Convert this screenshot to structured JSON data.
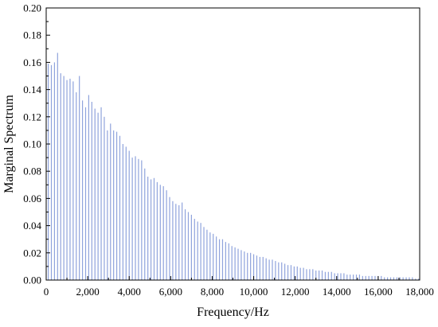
{
  "chart_data": {
    "type": "bar",
    "xlabel": "Frequency/Hz",
    "ylabel": "Marginal Spectrum",
    "xlim": [
      0,
      18000
    ],
    "ylim": [
      0,
      0.2
    ],
    "xticks": [
      0,
      2000,
      4000,
      6000,
      8000,
      10000,
      12000,
      14000,
      16000,
      18000
    ],
    "xtick_labels": [
      "0",
      "2,000",
      "4,000",
      "6,000",
      "8,000",
      "10,000",
      "12,000",
      "14,000",
      "16,000",
      "18,000"
    ],
    "yticks": [
      0,
      0.02,
      0.04,
      0.06,
      0.08,
      0.1,
      0.12,
      0.14,
      0.16,
      0.18,
      0.2
    ],
    "ytick_labels": [
      "0.00",
      "0.02",
      "0.04",
      "0.06",
      "0.08",
      "0.10",
      "0.12",
      "0.14",
      "0.16",
      "0.18",
      "0.20"
    ],
    "bar_color": "#8fa3dc",
    "grid": false,
    "series": [
      {
        "x": [
          0,
          150,
          300,
          450,
          600,
          750,
          900,
          1050,
          1200,
          1350,
          1500,
          1650,
          1800,
          1950,
          2100,
          2250,
          2400,
          2550,
          2700,
          2850,
          3000,
          3150,
          3300,
          3450,
          3600,
          3750,
          3900,
          4050,
          4200,
          4350,
          4500,
          4650,
          4800,
          4950,
          5100,
          5250,
          5400,
          5550,
          5700,
          5850,
          6000,
          6150,
          6300,
          6450,
          6600,
          6750,
          6900,
          7050,
          7200,
          7350,
          7500,
          7650,
          7800,
          7950,
          8100,
          8250,
          8400,
          8550,
          8700,
          8850,
          9000,
          9150,
          9300,
          9450,
          9600,
          9750,
          9900,
          10050,
          10200,
          10350,
          10500,
          10650,
          10800,
          10950,
          11100,
          11250,
          11400,
          11550,
          11700,
          11850,
          12000,
          12150,
          12300,
          12450,
          12600,
          12750,
          12900,
          13050,
          13200,
          13350,
          13500,
          13650,
          13800,
          13950,
          14100,
          14250,
          14400,
          14550,
          14700,
          14850,
          15000,
          15150,
          15300,
          15450,
          15600,
          15750,
          15900,
          16050,
          16200,
          16350,
          16500,
          16650,
          16800,
          16950,
          17100,
          17250,
          17400,
          17550,
          17700,
          17850
        ],
        "values": [
          0.159,
          0.158,
          0.16,
          0.167,
          0.152,
          0.15,
          0.147,
          0.148,
          0.146,
          0.138,
          0.15,
          0.132,
          0.127,
          0.136,
          0.131,
          0.126,
          0.123,
          0.127,
          0.12,
          0.11,
          0.115,
          0.11,
          0.109,
          0.106,
          0.1,
          0.098,
          0.095,
          0.09,
          0.091,
          0.089,
          0.088,
          0.082,
          0.076,
          0.074,
          0.075,
          0.072,
          0.07,
          0.069,
          0.066,
          0.061,
          0.058,
          0.056,
          0.055,
          0.057,
          0.052,
          0.05,
          0.048,
          0.045,
          0.043,
          0.042,
          0.039,
          0.037,
          0.035,
          0.034,
          0.032,
          0.03,
          0.03,
          0.028,
          0.027,
          0.025,
          0.024,
          0.023,
          0.022,
          0.021,
          0.02,
          0.02,
          0.019,
          0.018,
          0.017,
          0.017,
          0.016,
          0.015,
          0.015,
          0.014,
          0.013,
          0.013,
          0.012,
          0.011,
          0.011,
          0.01,
          0.01,
          0.009,
          0.009,
          0.008,
          0.008,
          0.008,
          0.007,
          0.007,
          0.007,
          0.006,
          0.006,
          0.006,
          0.005,
          0.005,
          0.005,
          0.005,
          0.004,
          0.004,
          0.004,
          0.004,
          0.004,
          0.003,
          0.003,
          0.003,
          0.003,
          0.003,
          0.003,
          0.003,
          0.002,
          0.002,
          0.002,
          0.002,
          0.002,
          0.002,
          0.002,
          0.002,
          0.002,
          0.002,
          0.001,
          0.001
        ]
      }
    ]
  }
}
